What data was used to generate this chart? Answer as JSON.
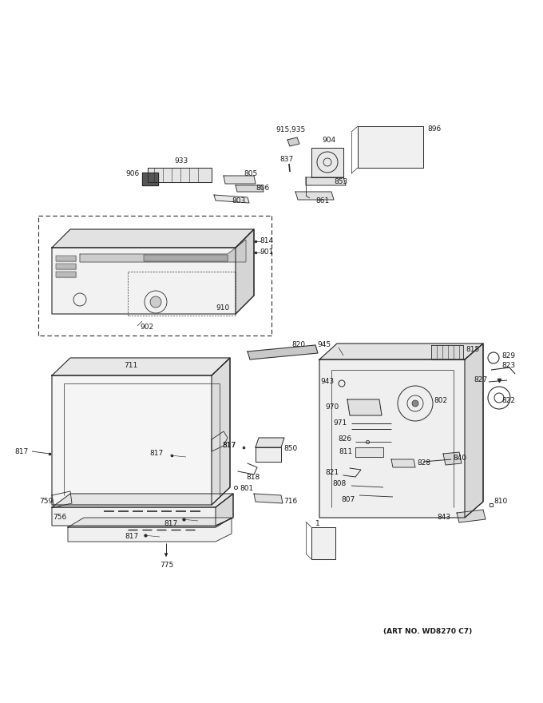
{
  "art_no": "(ART NO. WD8270 C7)",
  "bg_color": "#ffffff",
  "lc": "#2a2a2a",
  "tc": "#1a1a1a",
  "fs": 6.5,
  "fs_small": 5.5
}
